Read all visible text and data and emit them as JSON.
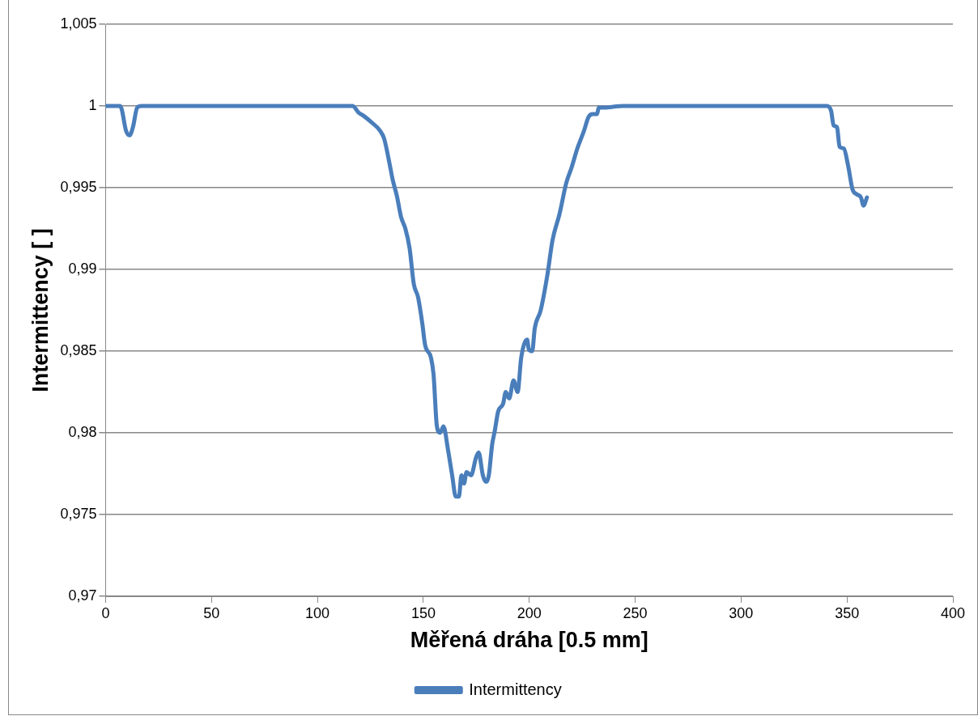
{
  "chart_data": {
    "type": "line",
    "xlabel": "Měřená dráha [0.5 mm]",
    "ylabel": "Intermittency [ ]",
    "xlim": [
      0,
      400
    ],
    "xticks": [
      0,
      50,
      100,
      150,
      200,
      250,
      300,
      350,
      400
    ],
    "ylim": [
      0.97,
      1.005
    ],
    "yticks": [
      {
        "value": 0.97,
        "label": "0,97"
      },
      {
        "value": 0.975,
        "label": "0,975"
      },
      {
        "value": 0.98,
        "label": "0,98"
      },
      {
        "value": 0.985,
        "label": "0,985"
      },
      {
        "value": 0.99,
        "label": "0,99"
      },
      {
        "value": 0.995,
        "label": "0,995"
      },
      1,
      {
        "value": 1.005,
        "label": "1,005"
      }
    ],
    "grid": "y",
    "legend": "bottom",
    "marker": "none",
    "line_style": "solid",
    "series": [
      {
        "name": "Intermittency",
        "color": "#4a7ebb",
        "x": [
          0,
          6.8,
          7.6,
          9.6,
          11.3,
          12.9,
          14.9,
          16.9,
          116.6,
          119.4,
          121.8,
          125.5,
          129.5,
          131.5,
          134.3,
          135.5,
          137.5,
          139.5,
          141.5,
          143.5,
          145.5,
          147.5,
          149.5,
          150.8,
          153.6,
          154.8,
          156.4,
          157.9,
          159.5,
          161.6,
          163.6,
          165.3,
          166.8,
          168.0,
          169.2,
          170.4,
          172.5,
          174.9,
          176.1,
          178.1,
          179.7,
          180.9,
          182.5,
          183.7,
          185.3,
          187.7,
          188.9,
          190.5,
          192.6,
          194.5,
          196.2,
          199,
          199.8,
          201.4,
          202.6,
          205.4,
          208.6,
          211,
          214.3,
          217.5,
          219.9,
          222.7,
          225.9,
          227.9,
          229.9,
          232,
          232.8,
          235.2,
          244,
          340.5,
          342.5,
          343.7,
          345.3,
          346.5,
          348.5,
          350.6,
          352.6,
          354.6,
          356.6,
          357.8,
          359.4
        ],
        "values": [
          1,
          1,
          0.9998,
          0.9985,
          0.9982,
          0.9987,
          0.9999,
          1,
          1,
          0.9996,
          0.9994,
          0.999,
          0.9985,
          0.998,
          0.9963,
          0.9955,
          0.9945,
          0.9932,
          0.9925,
          0.9913,
          0.9891,
          0.9883,
          0.9867,
          0.9854,
          0.9846,
          0.9836,
          0.9804,
          0.98,
          0.9804,
          0.979,
          0.9774,
          0.9761,
          0.9761,
          0.9774,
          0.9769,
          0.9776,
          0.9774,
          0.9785,
          0.9788,
          0.9774,
          0.977,
          0.9774,
          0.9793,
          0.9801,
          0.9813,
          0.9818,
          0.9825,
          0.9821,
          0.9832,
          0.9825,
          0.9846,
          0.9857,
          0.9851,
          0.985,
          0.9864,
          0.9875,
          0.9897,
          0.9918,
          0.9934,
          0.9953,
          0.9962,
          0.9974,
          0.9985,
          0.9993,
          0.9995,
          0.9995,
          0.9999,
          0.9999,
          1,
          1,
          0.9997,
          0.9988,
          0.9987,
          0.9975,
          0.9974,
          0.9963,
          0.9949,
          0.9946,
          0.9944,
          0.9939,
          0.9944
        ]
      }
    ]
  }
}
